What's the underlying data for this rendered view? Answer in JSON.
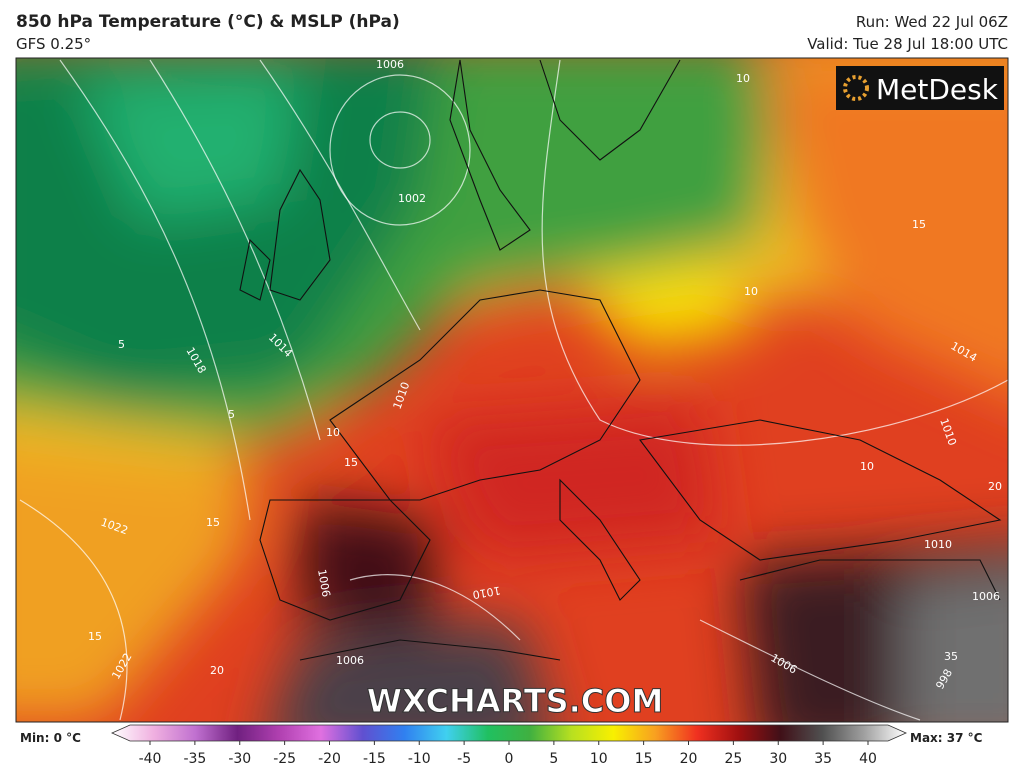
{
  "header": {
    "title": "850 hPa Temperature (°C) & MSLP (hPa)",
    "subtitle": "GFS 0.25°",
    "run": "Run: Wed 22 Jul 06Z",
    "valid": "Valid: Tue 28 Jul 18:00 UTC"
  },
  "map": {
    "logo": "MetDesk",
    "watermark": "WXCHARTS.COM",
    "labels": [
      "1006",
      "1002",
      "1018",
      "1014",
      "1022",
      "1022",
      "1010",
      "1006",
      "1010",
      "1006",
      "1006",
      "1010",
      "1010",
      "1014",
      "1006",
      "998",
      "10",
      "10",
      "10",
      "10",
      "15",
      "15",
      "15",
      "15",
      "20",
      "20",
      "35",
      "5",
      "5"
    ]
  },
  "colorbar": {
    "min_label": "Min: 0 °C",
    "max_label": "Max: 37 °C",
    "ticks": [
      -40,
      -35,
      -30,
      -25,
      -20,
      -15,
      -10,
      -5,
      0,
      5,
      10,
      15,
      20,
      25,
      30,
      35,
      40
    ],
    "colors": [
      "#ffffff",
      "#f0b0e0",
      "#c070d0",
      "#702080",
      "#b040b0",
      "#e070e0",
      "#6050d0",
      "#3080f0",
      "#40d0f0",
      "#20c060",
      "#40b040",
      "#b8e020",
      "#f8f000",
      "#f8a020",
      "#f03020",
      "#a01010",
      "#401018",
      "#505050",
      "#a0a0a0",
      "#ffffff"
    ]
  }
}
